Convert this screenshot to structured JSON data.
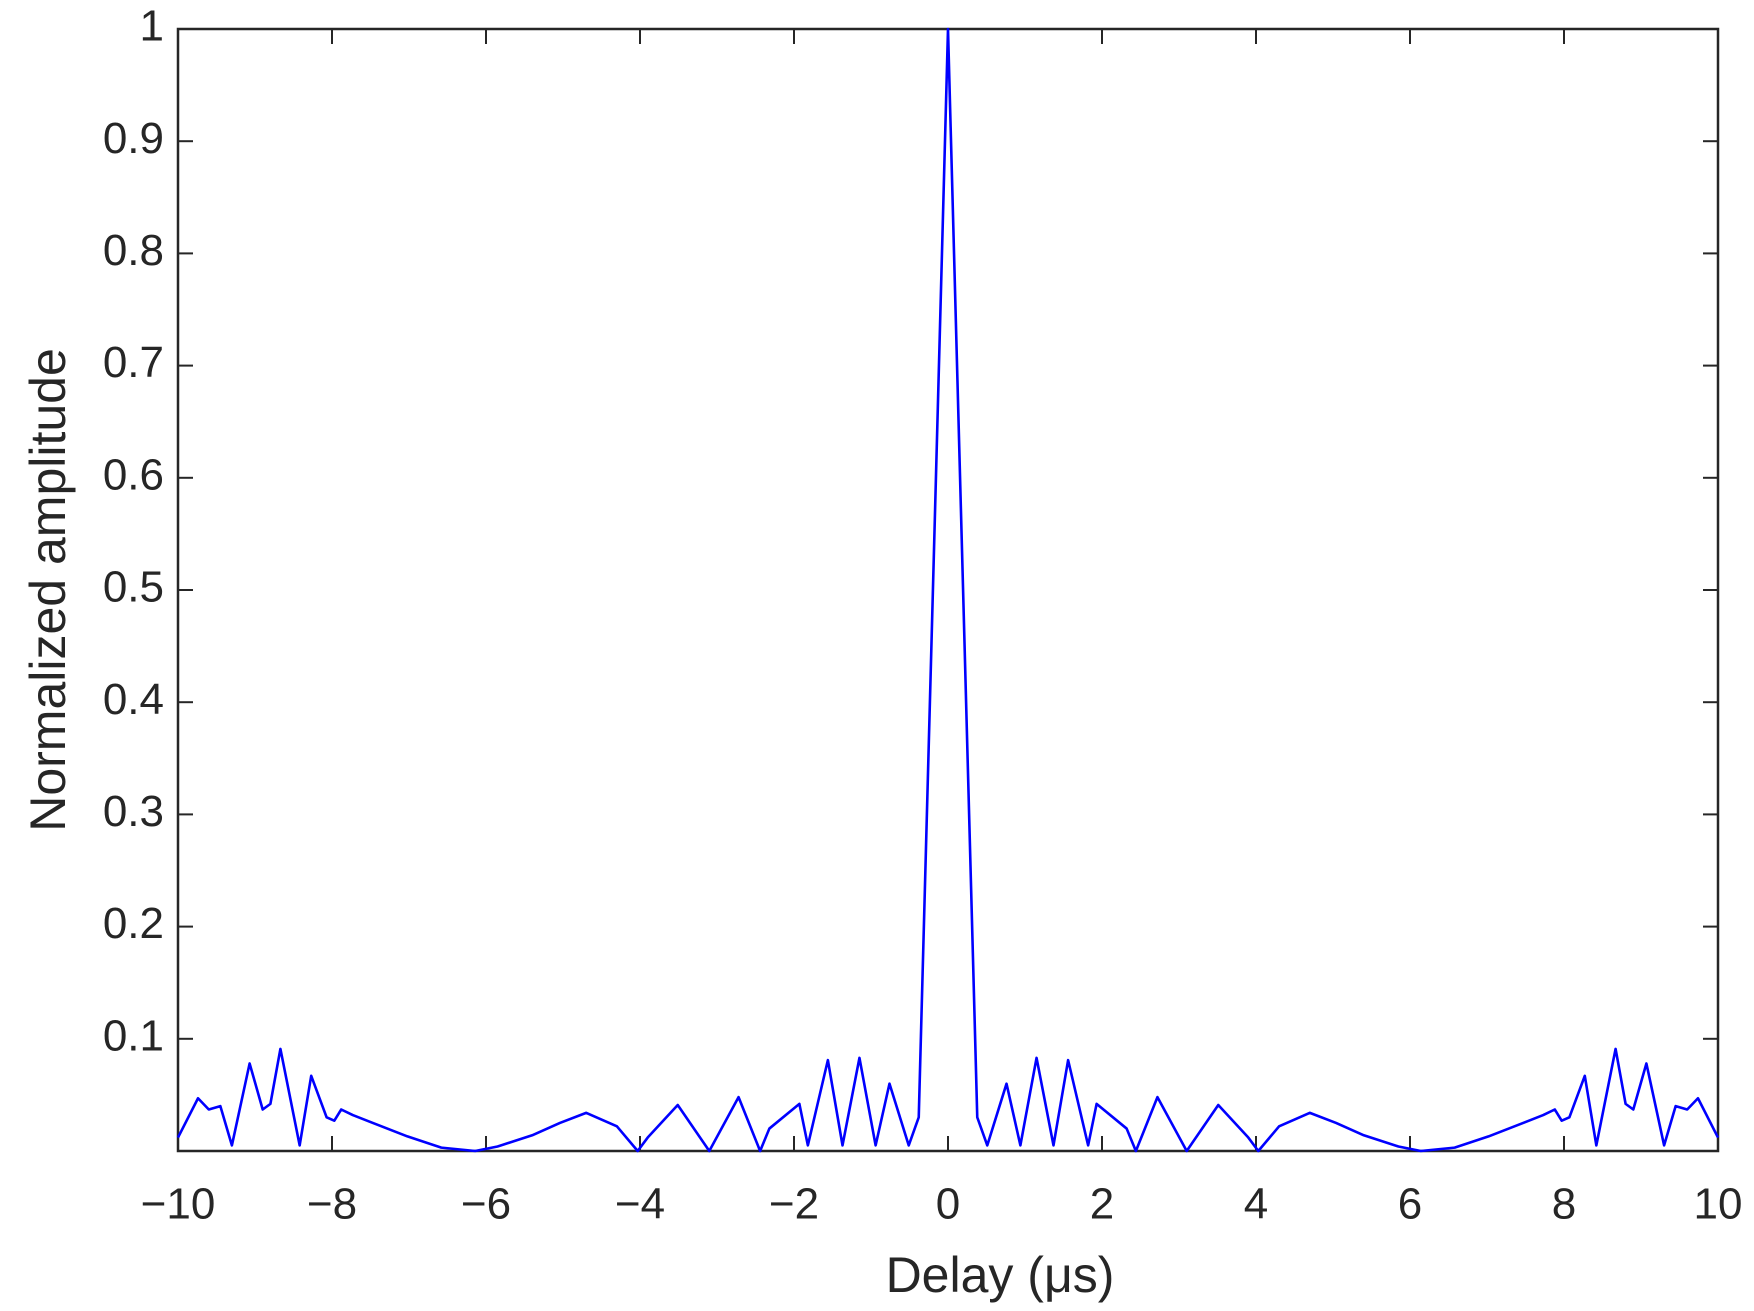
{
  "chart_data": {
    "type": "line",
    "x_label": "Delay (μs)",
    "y_label": "Normalized amplitude",
    "x": [
      -10,
      -9.74,
      -9.6,
      -9.45,
      -9.3,
      -9.07,
      -8.9,
      -8.8,
      -8.67,
      -8.42,
      -8.27,
      -8.07,
      -7.97,
      -7.88,
      -7.73,
      -7.47,
      -7.02,
      -6.58,
      -6.14,
      -5.85,
      -5.4,
      -5.04,
      -4.7,
      -4.3,
      -4.03,
      -3.9,
      -3.51,
      -3.1,
      -2.72,
      -2.44,
      -2.32,
      -1.93,
      -1.82,
      -1.56,
      -1.37,
      -1.15,
      -0.94,
      -0.76,
      -0.51,
      -0.38,
      0,
      0.38,
      0.51,
      0.76,
      0.94,
      1.15,
      1.37,
      1.56,
      1.82,
      1.93,
      2.32,
      2.44,
      2.72,
      3.1,
      3.51,
      3.9,
      4.03,
      4.3,
      4.7,
      5.04,
      5.4,
      5.85,
      6.14,
      6.58,
      7.02,
      7.47,
      7.73,
      7.88,
      7.97,
      8.07,
      8.27,
      8.42,
      8.67,
      8.8,
      8.9,
      9.07,
      9.3,
      9.45,
      9.6,
      9.74,
      10
    ],
    "values": [
      0.012,
      0.047,
      0.037,
      0.04,
      0.005,
      0.078,
      0.037,
      0.042,
      0.091,
      0.005,
      0.067,
      0.03,
      0.027,
      0.037,
      0.032,
      0.025,
      0.013,
      0.003,
      0,
      0.004,
      0.014,
      0.025,
      0.034,
      0.022,
      0,
      0.012,
      0.041,
      0,
      0.048,
      0,
      0.02,
      0.042,
      0.005,
      0.081,
      0.005,
      0.083,
      0.005,
      0.06,
      0.005,
      0.03,
      1,
      0.03,
      0.005,
      0.06,
      0.005,
      0.083,
      0.005,
      0.081,
      0.005,
      0.042,
      0.02,
      0,
      0.048,
      0,
      0.041,
      0.012,
      0,
      0.022,
      0.034,
      0.025,
      0.014,
      0.004,
      0,
      0.003,
      0.013,
      0.025,
      0.032,
      0.037,
      0.027,
      0.03,
      0.067,
      0.005,
      0.091,
      0.042,
      0.037,
      0.078,
      0.005,
      0.04,
      0.037,
      0.047,
      0.012
    ],
    "color": "#0000ff",
    "xlim": [
      -10,
      10
    ],
    "xticks": [
      {
        "value": -10,
        "label": "−10"
      },
      {
        "value": -8,
        "label": "−8"
      },
      {
        "value": -6,
        "label": "−6"
      },
      {
        "value": -4,
        "label": "−4"
      },
      {
        "value": -2,
        "label": "−2"
      },
      0,
      2,
      4,
      6,
      8,
      10
    ],
    "ylim": [
      0,
      1
    ],
    "yticks": [
      0.1,
      0.2,
      0.3,
      0.4,
      0.5,
      0.6,
      0.7,
      0.8,
      0.9,
      1
    ]
  }
}
